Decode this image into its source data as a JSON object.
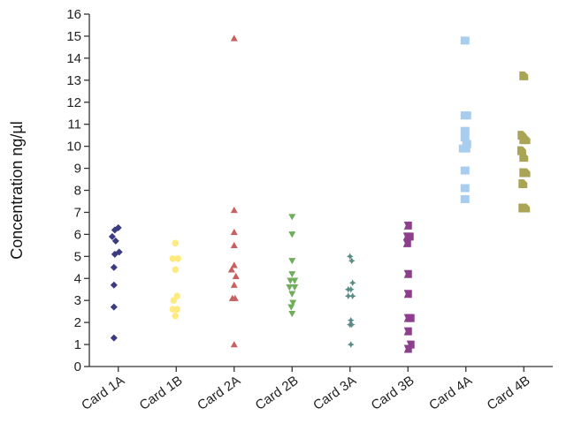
{
  "chart_data": {
    "type": "scatter",
    "title": "",
    "xlabel": "",
    "ylabel": "Concentration ng/µl",
    "ylim": [
      0,
      16
    ],
    "yticks": [
      0,
      1,
      2,
      3,
      4,
      5,
      6,
      7,
      8,
      9,
      10,
      11,
      12,
      13,
      14,
      15,
      16
    ],
    "grid": false,
    "categories": [
      "Card 1A",
      "Card 1B",
      "Card 2A",
      "Card 2B",
      "Card 3A",
      "Card 3B",
      "Card 4A",
      "Card 4B"
    ],
    "series": [
      {
        "category": "Card 1A",
        "marker": "diamond",
        "color": "#3b3b82",
        "points": [
          {
            "dx": 0.0,
            "y": 6.3
          },
          {
            "dx": -0.2,
            "y": 6.2
          },
          {
            "dx": -0.35,
            "y": 5.9
          },
          {
            "dx": -0.15,
            "y": 5.7
          },
          {
            "dx": 0.05,
            "y": 5.2
          },
          {
            "dx": -0.2,
            "y": 5.1
          },
          {
            "dx": -0.25,
            "y": 4.5
          },
          {
            "dx": -0.25,
            "y": 3.7
          },
          {
            "dx": -0.25,
            "y": 2.7
          },
          {
            "dx": -0.25,
            "y": 1.3
          }
        ]
      },
      {
        "category": "Card 1B",
        "marker": "circle",
        "color": "#fdeb80",
        "points": [
          {
            "dx": -0.05,
            "y": 5.6
          },
          {
            "dx": -0.2,
            "y": 4.9
          },
          {
            "dx": 0.1,
            "y": 4.9
          },
          {
            "dx": -0.05,
            "y": 4.4
          },
          {
            "dx": 0.05,
            "y": 3.2
          },
          {
            "dx": -0.15,
            "y": 3.0
          },
          {
            "dx": -0.2,
            "y": 2.6
          },
          {
            "dx": 0.05,
            "y": 2.6
          },
          {
            "dx": -0.05,
            "y": 2.3
          }
        ]
      },
      {
        "category": "Card 2A",
        "marker": "triangle-up",
        "color": "#c86060",
        "points": [
          {
            "dx": 0.0,
            "y": 14.9
          },
          {
            "dx": 0.0,
            "y": 7.1
          },
          {
            "dx": 0.0,
            "y": 6.1
          },
          {
            "dx": 0.0,
            "y": 5.5
          },
          {
            "dx": 0.0,
            "y": 4.6
          },
          {
            "dx": -0.15,
            "y": 4.4
          },
          {
            "dx": 0.1,
            "y": 4.1
          },
          {
            "dx": 0.0,
            "y": 3.7
          },
          {
            "dx": -0.1,
            "y": 3.1
          },
          {
            "dx": 0.05,
            "y": 3.1
          },
          {
            "dx": 0.0,
            "y": 1.0
          }
        ]
      },
      {
        "category": "Card 2B",
        "marker": "triangle-down",
        "color": "#6fae5a",
        "points": [
          {
            "dx": 0.0,
            "y": 6.8
          },
          {
            "dx": 0.0,
            "y": 6.0
          },
          {
            "dx": 0.0,
            "y": 4.8
          },
          {
            "dx": 0.0,
            "y": 4.2
          },
          {
            "dx": -0.1,
            "y": 3.9
          },
          {
            "dx": 0.15,
            "y": 3.9
          },
          {
            "dx": -0.15,
            "y": 3.6
          },
          {
            "dx": 0.15,
            "y": 3.6
          },
          {
            "dx": 0.0,
            "y": 3.3
          },
          {
            "dx": 0.05,
            "y": 2.9
          },
          {
            "dx": -0.05,
            "y": 2.7
          },
          {
            "dx": 0.0,
            "y": 2.4
          }
        ]
      },
      {
        "category": "Card 3A",
        "marker": "cross",
        "color": "#5a8c86",
        "points": [
          {
            "dx": 0.0,
            "y": 5.0
          },
          {
            "dx": 0.1,
            "y": 4.8
          },
          {
            "dx": 0.15,
            "y": 3.8
          },
          {
            "dx": -0.1,
            "y": 3.5
          },
          {
            "dx": 0.05,
            "y": 3.5
          },
          {
            "dx": -0.1,
            "y": 3.2
          },
          {
            "dx": 0.15,
            "y": 3.2
          },
          {
            "dx": 0.05,
            "y": 2.1
          },
          {
            "dx": 0.0,
            "y": 1.9
          },
          {
            "dx": 0.1,
            "y": 1.9
          },
          {
            "dx": 0.05,
            "y": 1.0
          }
        ]
      },
      {
        "category": "Card 3B",
        "marker": "flag",
        "color": "#8d3f8d",
        "points": [
          {
            "dx": 0.0,
            "y": 6.4
          },
          {
            "dx": -0.05,
            "y": 5.9
          },
          {
            "dx": 0.1,
            "y": 5.9
          },
          {
            "dx": -0.05,
            "y": 5.6
          },
          {
            "dx": 0.0,
            "y": 4.2
          },
          {
            "dx": 0.0,
            "y": 3.3
          },
          {
            "dx": 0.0,
            "y": 2.2
          },
          {
            "dx": 0.15,
            "y": 2.2
          },
          {
            "dx": 0.0,
            "y": 1.6
          },
          {
            "dx": 0.15,
            "y": 1.0
          },
          {
            "dx": 0.0,
            "y": 0.8
          }
        ]
      },
      {
        "category": "Card 4A",
        "marker": "square",
        "color": "#a8cdee",
        "points": [
          {
            "dx": -0.05,
            "y": 14.8
          },
          {
            "dx": -0.05,
            "y": 11.4
          },
          {
            "dx": 0.05,
            "y": 11.4
          },
          {
            "dx": -0.05,
            "y": 10.7
          },
          {
            "dx": -0.05,
            "y": 10.4
          },
          {
            "dx": 0.05,
            "y": 10.1
          },
          {
            "dx": -0.15,
            "y": 9.9
          },
          {
            "dx": 0.0,
            "y": 9.9
          },
          {
            "dx": -0.05,
            "y": 8.9
          },
          {
            "dx": -0.05,
            "y": 8.1
          },
          {
            "dx": -0.05,
            "y": 7.6
          }
        ]
      },
      {
        "category": "Card 4B",
        "marker": "house",
        "color": "#aaa556",
        "points": [
          {
            "dx": 0.0,
            "y": 13.2
          },
          {
            "dx": -0.1,
            "y": 10.5
          },
          {
            "dx": 0.0,
            "y": 10.3
          },
          {
            "dx": 0.12,
            "y": 10.3
          },
          {
            "dx": -0.12,
            "y": 9.8
          },
          {
            "dx": 0.0,
            "y": 9.5
          },
          {
            "dx": 0.0,
            "y": 8.8
          },
          {
            "dx": 0.12,
            "y": 8.8
          },
          {
            "dx": -0.05,
            "y": 8.3
          },
          {
            "dx": -0.05,
            "y": 7.2
          },
          {
            "dx": 0.1,
            "y": 7.2
          }
        ]
      }
    ]
  }
}
